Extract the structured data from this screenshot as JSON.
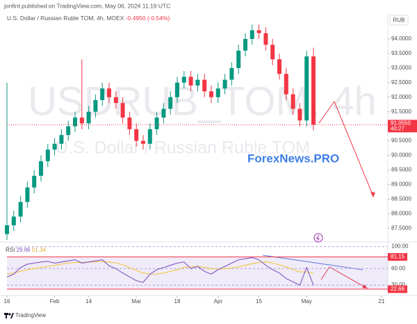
{
  "header": {
    "published": "jonfint published on TradingView.com, May 06, 2024 11:19 UTC",
    "symbol": "U.S. Dollar / Russian Ruble TOM, 4h, MOEX",
    "change": "-0.4950 (-0.54%)"
  },
  "chart_data": {
    "type": "candlestick",
    "watermark": "USDRUB_TOM, 4h",
    "watermark_sub": "U.S. Dollar / Russian Ruble TOM",
    "brand": "ForexNews.PRO",
    "currency": "RUB",
    "up_color": "#089981",
    "down_color": "#f23645",
    "open": [
      87.3,
      87.6,
      87.9,
      88.4,
      88.9,
      89.3,
      89.8,
      90.2,
      90.4,
      90.7,
      91.0,
      91.3,
      91.1,
      91.5,
      91.9,
      92.3,
      92.0,
      91.8,
      91.3,
      90.9,
      90.5,
      90.4,
      90.9,
      91.3,
      91.6,
      92.0,
      92.5,
      92.7,
      92.4,
      92.6,
      92.2,
      92.0,
      92.3,
      92.6,
      93.0,
      93.6,
      94.0,
      94.3,
      94.2,
      93.8,
      93.3,
      92.8,
      92.1,
      91.6,
      91.2,
      93.4
    ],
    "high": [
      92.5,
      88.1,
      88.6,
      89.1,
      89.5,
      90.0,
      90.4,
      90.6,
      90.9,
      91.2,
      91.5,
      93.3,
      91.7,
      92.1,
      92.5,
      92.5,
      92.2,
      92.0,
      91.5,
      91.1,
      90.7,
      91.1,
      91.5,
      91.8,
      92.2,
      92.7,
      92.9,
      92.9,
      92.8,
      92.8,
      92.4,
      92.5,
      92.8,
      93.2,
      93.8,
      94.2,
      94.5,
      94.5,
      94.4,
      94.0,
      93.5,
      93.0,
      92.3,
      91.8,
      93.6,
      93.7
    ],
    "low": [
      87.1,
      87.4,
      87.7,
      88.2,
      88.7,
      89.1,
      89.6,
      90.0,
      90.2,
      90.5,
      90.8,
      90.9,
      90.9,
      91.3,
      91.7,
      91.8,
      91.6,
      91.1,
      90.7,
      90.3,
      90.2,
      90.2,
      90.7,
      91.1,
      91.4,
      91.8,
      92.3,
      92.2,
      92.2,
      92.0,
      91.8,
      91.8,
      92.1,
      92.4,
      92.8,
      93.4,
      93.8,
      94.0,
      93.6,
      93.1,
      92.6,
      91.9,
      91.4,
      91.0,
      91.0,
      90.86
    ],
    "close": [
      87.6,
      87.9,
      88.4,
      88.9,
      89.3,
      89.8,
      90.2,
      90.4,
      90.7,
      91.0,
      91.3,
      91.1,
      91.5,
      91.9,
      92.3,
      92.0,
      91.8,
      91.3,
      90.9,
      90.5,
      90.4,
      90.9,
      91.3,
      91.6,
      92.0,
      92.5,
      92.7,
      92.4,
      92.6,
      92.2,
      92.0,
      92.3,
      92.6,
      93.0,
      93.6,
      94.0,
      94.3,
      94.2,
      93.8,
      93.3,
      92.8,
      92.1,
      91.6,
      91.2,
      93.4,
      91.055
    ],
    "xlim": [
      0,
      55
    ],
    "xticks": [
      {
        "value": 0,
        "label": "16"
      },
      {
        "value": 7,
        "label": "Feb"
      },
      {
        "value": 12,
        "label": "14"
      },
      {
        "value": 19,
        "label": "Mar"
      },
      {
        "value": 25,
        "label": "18"
      },
      {
        "value": 31,
        "label": "Apr"
      },
      {
        "value": 37,
        "label": "15"
      },
      {
        "value": 44,
        "label": "May"
      },
      {
        "value": 55,
        "label": "21"
      }
    ],
    "ylim": [
      87.1,
      94.86
    ],
    "yticks": [
      {
        "value": 87.5,
        "label": "87.5000"
      },
      {
        "value": 88.0,
        "label": "88.0000"
      },
      {
        "value": 88.5,
        "label": "88.5000"
      },
      {
        "value": 89.0,
        "label": "89.0000"
      },
      {
        "value": 89.5,
        "label": "89.5000"
      },
      {
        "value": 90.0,
        "label": "90.0000"
      },
      {
        "value": 90.5,
        "label": "90.5000"
      },
      {
        "value": 91.5,
        "label": "91.5000"
      },
      {
        "value": 92.0,
        "label": "92.0000"
      },
      {
        "value": 92.5,
        "label": "92.5000"
      },
      {
        "value": 93.0,
        "label": "93.0000"
      },
      {
        "value": 93.5,
        "label": "93.5000"
      },
      {
        "value": 94.0,
        "label": "94.0000"
      }
    ],
    "last_price": {
      "value": 91.055,
      "label": "91.0550"
    },
    "countdown": "40:27",
    "rsi": {
      "name": "RSI",
      "color": "#7e57c2",
      "ma_color": "#f5c542",
      "values": [
        45,
        50,
        62,
        68,
        70,
        72,
        73,
        70,
        72,
        74,
        76,
        70,
        72,
        74,
        76,
        65,
        60,
        52,
        45,
        38,
        35,
        50,
        58,
        62,
        66,
        70,
        72,
        60,
        64,
        55,
        50,
        58,
        64,
        70,
        76,
        78,
        80,
        76,
        66,
        58,
        52,
        42,
        36,
        30,
        62,
        29.86
      ],
      "ma": [
        50,
        52,
        55,
        58,
        60,
        62,
        64,
        66,
        68,
        70,
        71,
        71,
        72,
        72,
        73,
        72,
        70,
        67,
        62,
        57,
        52,
        50,
        50,
        52,
        55,
        58,
        62,
        63,
        64,
        62,
        60,
        59,
        60,
        61,
        63,
        66,
        69,
        71,
        72,
        70,
        67,
        63,
        58,
        54,
        54,
        51.34
      ],
      "ylim": [
        15,
        102
      ],
      "yticks": [
        {
          "value": 100,
          "label": "100.00"
        },
        {
          "value": 60,
          "label": "60.00"
        },
        {
          "value": 30,
          "label": "30.00"
        }
      ],
      "levels": [
        {
          "value": 81.15,
          "label": "81.15"
        },
        {
          "value": 22.66,
          "label": "22.66"
        }
      ]
    }
  },
  "footer": "TradingView"
}
